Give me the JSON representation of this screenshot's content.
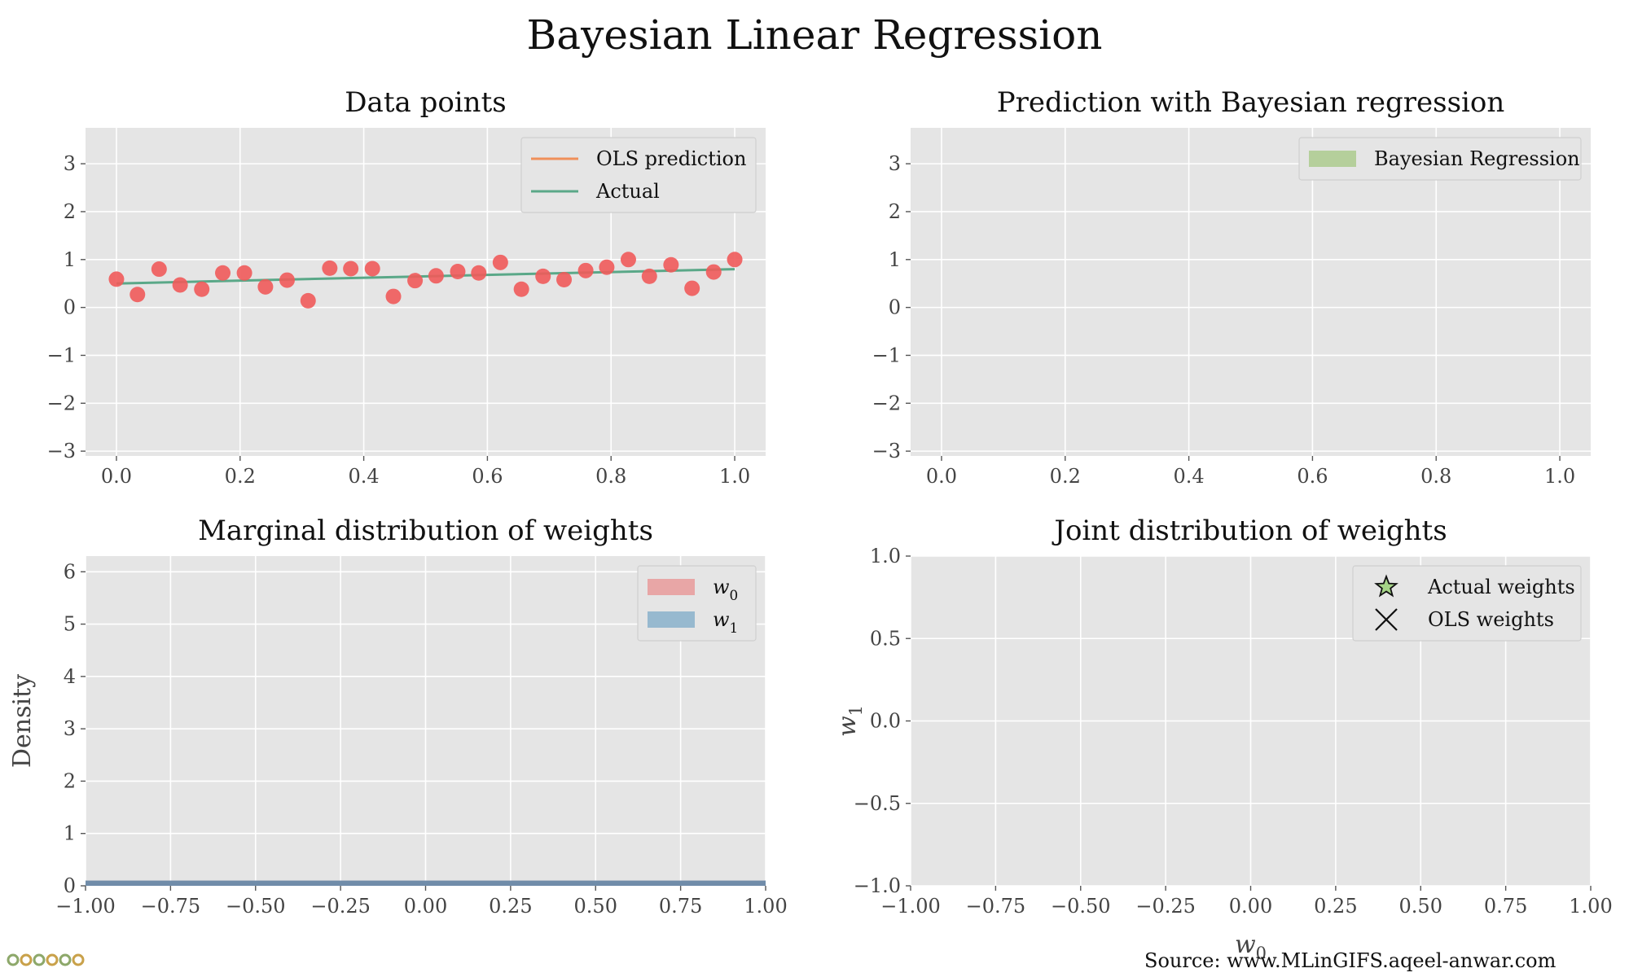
{
  "figure": {
    "title": "Bayesian Linear Regression",
    "source": "Source: www.MLinGIFS.aqeel-anwar.com",
    "colors": {
      "panel_bg": "#e5e5e5",
      "grid": "#ffffff",
      "tick_text": "#444444"
    }
  },
  "chart_data": [
    {
      "id": "data-points",
      "type": "scatter",
      "title": "Data points",
      "xlim": [
        -0.05,
        1.05
      ],
      "ylim": [
        -3.1,
        3.75
      ],
      "xticks": [
        0.0,
        0.2,
        0.4,
        0.6,
        0.8,
        1.0
      ],
      "xtick_labels": [
        "0.0",
        "0.2",
        "0.4",
        "0.6",
        "0.8",
        "1.0"
      ],
      "yticks": [
        -3,
        -2,
        -1,
        0,
        1,
        2,
        3
      ],
      "ytick_labels": [
        "−3",
        "−2",
        "−1",
        "0",
        "1",
        "2",
        "3"
      ],
      "grid": true,
      "legend": {
        "placement": "top-right",
        "entries": [
          {
            "label": "OLS prediction",
            "color": "#f0905a",
            "kind": "line"
          },
          {
            "label": "Actual",
            "color": "#5aa888",
            "kind": "line"
          }
        ]
      },
      "series": [
        {
          "name": "Actual",
          "type": "line",
          "color": "#5aa888",
          "x": [
            0.0,
            1.0
          ],
          "y": [
            0.5,
            0.8
          ]
        },
        {
          "type": "scatter",
          "color": "#f05a5a",
          "x": [
            0.0,
            0.034,
            0.069,
            0.103,
            0.138,
            0.172,
            0.207,
            0.241,
            0.276,
            0.31,
            0.345,
            0.379,
            0.414,
            0.448,
            0.483,
            0.517,
            0.552,
            0.586,
            0.621,
            0.655,
            0.69,
            0.724,
            0.759,
            0.793,
            0.828,
            0.862,
            0.897,
            0.931,
            0.966,
            1.0
          ],
          "y": [
            0.59,
            0.27,
            0.8,
            0.47,
            0.38,
            0.72,
            0.72,
            0.43,
            0.57,
            0.14,
            0.82,
            0.81,
            0.81,
            0.23,
            0.56,
            0.66,
            0.75,
            0.72,
            0.94,
            0.38,
            0.65,
            0.58,
            0.77,
            0.84,
            1.0,
            0.65,
            0.89,
            0.4,
            0.74,
            1.0
          ]
        }
      ]
    },
    {
      "id": "prediction",
      "type": "area",
      "title": "Prediction with Bayesian regression",
      "xlim": [
        -0.05,
        1.05
      ],
      "ylim": [
        -3.1,
        3.75
      ],
      "xticks": [
        0.0,
        0.2,
        0.4,
        0.6,
        0.8,
        1.0
      ],
      "xtick_labels": [
        "0.0",
        "0.2",
        "0.4",
        "0.6",
        "0.8",
        "1.0"
      ],
      "yticks": [
        -3,
        -2,
        -1,
        0,
        1,
        2,
        3
      ],
      "ytick_labels": [
        "−3",
        "−2",
        "−1",
        "0",
        "1",
        "2",
        "3"
      ],
      "grid": true,
      "legend": {
        "placement": "top-right",
        "entries": [
          {
            "label": "Bayesian Regression",
            "color": "#b5cf9b",
            "kind": "patch"
          }
        ]
      },
      "series": []
    },
    {
      "id": "marginal",
      "type": "area",
      "title": "Marginal distribution of weights",
      "ylabel": "Density",
      "xlim": [
        -1.0,
        1.0
      ],
      "ylim": [
        0,
        6.3
      ],
      "xticks": [
        -1.0,
        -0.75,
        -0.5,
        -0.25,
        0.0,
        0.25,
        0.5,
        0.75,
        1.0
      ],
      "xtick_labels": [
        "−1.00",
        "−0.75",
        "−0.50",
        "−0.25",
        "0.00",
        "0.25",
        "0.50",
        "0.75",
        "1.00"
      ],
      "yticks": [
        0,
        1,
        2,
        3,
        4,
        5,
        6
      ],
      "ytick_labels": [
        "0",
        "1",
        "2",
        "3",
        "4",
        "5",
        "6"
      ],
      "grid": true,
      "legend": {
        "placement": "top-right",
        "entries": [
          {
            "label": "w",
            "sub": "0",
            "color": "#e8a6a6",
            "kind": "patch"
          },
          {
            "label": "w",
            "sub": "1",
            "color": "#97b9cf",
            "kind": "patch"
          }
        ]
      },
      "series": [
        {
          "name": "w0",
          "color": "#e8a6a6",
          "x": [
            -1.0,
            1.0
          ],
          "y": [
            0.1,
            0.1
          ]
        },
        {
          "name": "w1",
          "color": "#5a86a8",
          "x": [
            -1.0,
            1.0
          ],
          "y": [
            0.1,
            0.1
          ]
        }
      ]
    },
    {
      "id": "joint",
      "type": "scatter",
      "title": "Joint distribution of weights",
      "xlabel": "w",
      "xlabel_sub": "0",
      "ylabel": "w",
      "ylabel_sub": "1",
      "xlim": [
        -1.0,
        1.0
      ],
      "ylim": [
        -1.0,
        1.0
      ],
      "xticks": [
        -1.0,
        -0.75,
        -0.5,
        -0.25,
        0.0,
        0.25,
        0.5,
        0.75,
        1.0
      ],
      "xtick_labels": [
        "−1.00",
        "−0.75",
        "−0.50",
        "−0.25",
        "0.00",
        "0.25",
        "0.50",
        "0.75",
        "1.00"
      ],
      "yticks": [
        -1.0,
        -0.5,
        0.0,
        0.5,
        1.0
      ],
      "ytick_labels": [
        "−1.0",
        "−0.5",
        "0.0",
        "0.5",
        "1.0"
      ],
      "grid": true,
      "legend": {
        "placement": "top-right",
        "entries": [
          {
            "label": "Actual weights",
            "color": "#a5d487",
            "kind": "star"
          },
          {
            "label": "OLS weights",
            "color": "#111111",
            "kind": "cross"
          }
        ]
      },
      "series": []
    }
  ]
}
